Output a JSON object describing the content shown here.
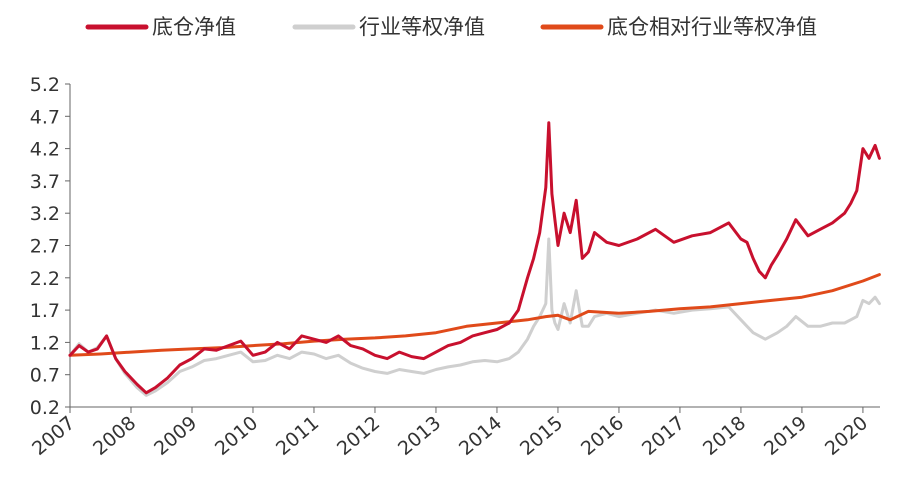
{
  "chart_data": {
    "type": "line",
    "title": "",
    "xlabel": "",
    "ylabel": "",
    "x_ticks": [
      "2007",
      "2008",
      "2009",
      "2010",
      "2011",
      "2012",
      "2013",
      "2014",
      "2015",
      "2016",
      "2017",
      "2018",
      "2019",
      "2020"
    ],
    "y_ticks": [
      "0.2",
      "0.7",
      "1.2",
      "1.7",
      "2.2",
      "2.7",
      "3.2",
      "3.7",
      "4.2",
      "4.7",
      "5.2"
    ],
    "ylim": [
      0.2,
      5.2
    ],
    "xlim": [
      2007.0,
      2020.28
    ],
    "grid": false,
    "legend_position": "top",
    "series": [
      {
        "name": "底仓净值",
        "color": "#c8102e",
        "x": [
          2007.0,
          2007.15,
          2007.3,
          2007.45,
          2007.6,
          2007.75,
          2007.9,
          2008.1,
          2008.25,
          2008.4,
          2008.6,
          2008.8,
          2009.0,
          2009.2,
          2009.4,
          2009.6,
          2009.8,
          2010.0,
          2010.2,
          2010.4,
          2010.6,
          2010.8,
          2011.0,
          2011.2,
          2011.4,
          2011.6,
          2011.8,
          2012.0,
          2012.2,
          2012.4,
          2012.6,
          2012.8,
          2013.0,
          2013.2,
          2013.4,
          2013.6,
          2013.8,
          2014.0,
          2014.2,
          2014.35,
          2014.5,
          2014.6,
          2014.7,
          2014.8,
          2014.85,
          2014.9,
          2014.95,
          2015.0,
          2015.1,
          2015.2,
          2015.3,
          2015.4,
          2015.5,
          2015.6,
          2015.8,
          2016.0,
          2016.3,
          2016.6,
          2016.9,
          2017.2,
          2017.5,
          2017.8,
          2018.0,
          2018.1,
          2018.2,
          2018.3,
          2018.4,
          2018.5,
          2018.6,
          2018.75,
          2018.9,
          2019.1,
          2019.3,
          2019.5,
          2019.7,
          2019.8,
          2019.9,
          2020.0,
          2020.1,
          2020.2,
          2020.27
        ],
        "values": [
          1.0,
          1.15,
          1.05,
          1.1,
          1.3,
          0.95,
          0.75,
          0.55,
          0.42,
          0.5,
          0.65,
          0.85,
          0.95,
          1.1,
          1.08,
          1.15,
          1.22,
          1.0,
          1.05,
          1.2,
          1.1,
          1.3,
          1.25,
          1.2,
          1.3,
          1.15,
          1.1,
          1.0,
          0.95,
          1.05,
          0.98,
          0.95,
          1.05,
          1.15,
          1.2,
          1.3,
          1.35,
          1.4,
          1.5,
          1.7,
          2.2,
          2.5,
          2.9,
          3.6,
          4.6,
          3.5,
          3.1,
          2.7,
          3.2,
          2.9,
          3.4,
          2.5,
          2.6,
          2.9,
          2.75,
          2.7,
          2.8,
          2.95,
          2.75,
          2.85,
          2.9,
          3.05,
          2.8,
          2.75,
          2.5,
          2.3,
          2.2,
          2.4,
          2.55,
          2.8,
          3.1,
          2.85,
          2.95,
          3.05,
          3.2,
          3.35,
          3.55,
          4.2,
          4.05,
          4.25,
          4.05
        ]
      },
      {
        "name": "行业等权净值",
        "color": "#cfcfcf",
        "x": [
          2007.0,
          2007.15,
          2007.3,
          2007.45,
          2007.6,
          2007.75,
          2007.9,
          2008.1,
          2008.25,
          2008.4,
          2008.6,
          2008.8,
          2009.0,
          2009.2,
          2009.4,
          2009.6,
          2009.8,
          2010.0,
          2010.2,
          2010.4,
          2010.6,
          2010.8,
          2011.0,
          2011.2,
          2011.4,
          2011.6,
          2011.8,
          2012.0,
          2012.2,
          2012.4,
          2012.6,
          2012.8,
          2013.0,
          2013.2,
          2013.4,
          2013.6,
          2013.8,
          2014.0,
          2014.2,
          2014.35,
          2014.5,
          2014.6,
          2014.7,
          2014.8,
          2014.85,
          2014.9,
          2014.95,
          2015.0,
          2015.1,
          2015.2,
          2015.3,
          2015.4,
          2015.5,
          2015.6,
          2015.8,
          2016.0,
          2016.3,
          2016.6,
          2016.9,
          2017.2,
          2017.5,
          2017.8,
          2018.0,
          2018.1,
          2018.2,
          2018.3,
          2018.4,
          2018.5,
          2018.6,
          2018.75,
          2018.9,
          2019.1,
          2019.3,
          2019.5,
          2019.7,
          2019.8,
          2019.9,
          2020.0,
          2020.1,
          2020.2,
          2020.27
        ],
        "values": [
          1.0,
          1.18,
          1.05,
          1.12,
          1.3,
          0.95,
          0.72,
          0.5,
          0.38,
          0.45,
          0.58,
          0.75,
          0.82,
          0.92,
          0.95,
          1.0,
          1.05,
          0.9,
          0.92,
          1.0,
          0.95,
          1.05,
          1.02,
          0.95,
          1.0,
          0.88,
          0.8,
          0.75,
          0.72,
          0.78,
          0.75,
          0.72,
          0.78,
          0.82,
          0.85,
          0.9,
          0.92,
          0.9,
          0.95,
          1.05,
          1.25,
          1.45,
          1.6,
          1.8,
          2.8,
          1.7,
          1.5,
          1.4,
          1.8,
          1.5,
          2.0,
          1.45,
          1.45,
          1.6,
          1.65,
          1.6,
          1.65,
          1.7,
          1.65,
          1.7,
          1.72,
          1.75,
          1.55,
          1.45,
          1.35,
          1.3,
          1.25,
          1.3,
          1.35,
          1.45,
          1.6,
          1.45,
          1.45,
          1.5,
          1.5,
          1.55,
          1.6,
          1.85,
          1.8,
          1.9,
          1.8
        ]
      },
      {
        "name": "底仓相对行业等权净值",
        "color": "#e04a1a",
        "x": [
          2007.0,
          2007.5,
          2008.0,
          2008.5,
          2009.0,
          2009.5,
          2010.0,
          2010.5,
          2011.0,
          2011.5,
          2012.0,
          2012.5,
          2013.0,
          2013.5,
          2014.0,
          2014.5,
          2014.8,
          2015.0,
          2015.2,
          2015.5,
          2016.0,
          2016.5,
          2017.0,
          2017.5,
          2018.0,
          2018.5,
          2019.0,
          2019.5,
          2020.0,
          2020.27
        ],
        "values": [
          1.0,
          1.02,
          1.05,
          1.08,
          1.1,
          1.12,
          1.15,
          1.18,
          1.22,
          1.25,
          1.27,
          1.3,
          1.35,
          1.45,
          1.5,
          1.55,
          1.6,
          1.62,
          1.55,
          1.68,
          1.65,
          1.68,
          1.72,
          1.75,
          1.8,
          1.85,
          1.9,
          2.0,
          2.15,
          2.25
        ]
      }
    ]
  }
}
